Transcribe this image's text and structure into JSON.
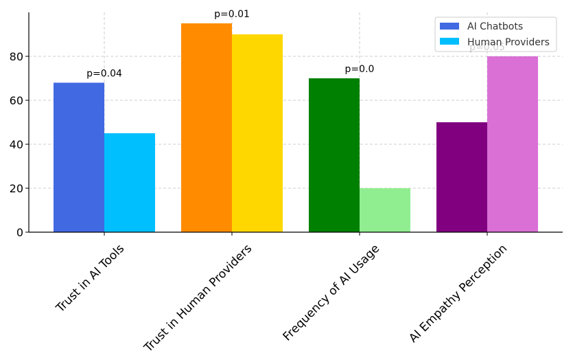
{
  "chart_data": {
    "type": "bar",
    "categories": [
      "Trust in AI Tools",
      "Trust in Human Providers",
      "Frequency of AI Usage",
      "AI Empathy Perception"
    ],
    "series": [
      {
        "name": "AI Chatbots",
        "values": [
          68,
          95,
          70,
          50
        ],
        "colors": [
          "#4169E1",
          "#FF8C00",
          "#008000",
          "#800080"
        ]
      },
      {
        "name": "Human Providers",
        "values": [
          45,
          90,
          20,
          80
        ],
        "colors": [
          "#00BFFF",
          "#FFD700",
          "#90EE90",
          "#DA70D6"
        ]
      }
    ],
    "annotations": [
      "p=0.04",
      "p=0.01",
      "p=0.0",
      "p=0.05"
    ],
    "yticks": [
      0,
      20,
      40,
      60,
      80
    ],
    "ylim": [
      0,
      100
    ],
    "grid": true,
    "legend_position": "top-right",
    "legend_colors": [
      "#4169E1",
      "#00BFFF"
    ],
    "title": "",
    "xlabel": "",
    "ylabel": ""
  }
}
